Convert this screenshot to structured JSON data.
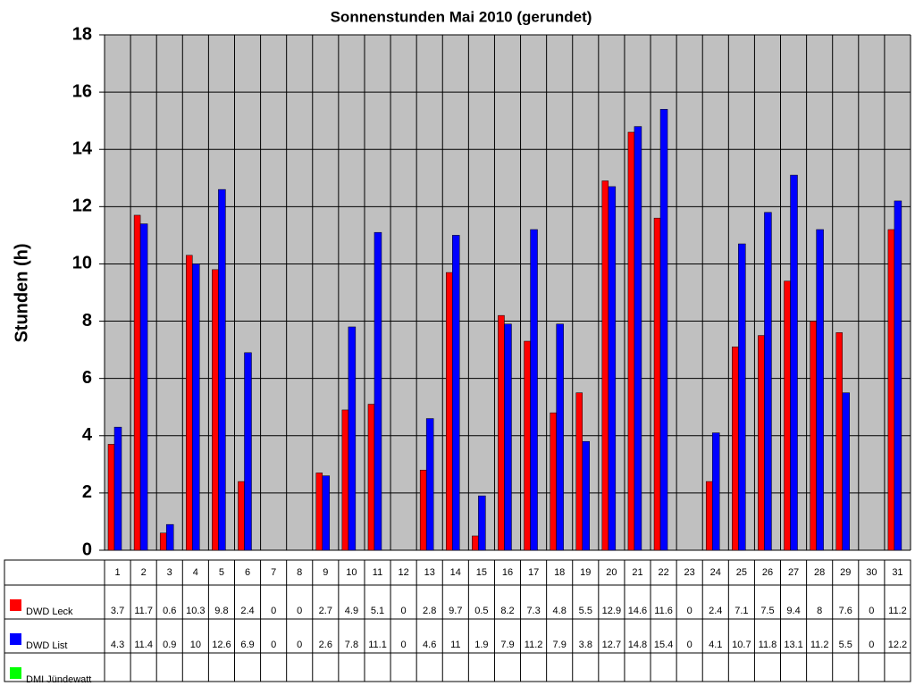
{
  "chart_data": {
    "type": "bar",
    "title": "Sonnenstunden Mai 2010 (gerundet)",
    "y_label": "Stunden (h)",
    "categories": [
      "1",
      "2",
      "3",
      "4",
      "5",
      "6",
      "7",
      "8",
      "9",
      "10",
      "11",
      "12",
      "13",
      "14",
      "15",
      "16",
      "17",
      "18",
      "19",
      "20",
      "21",
      "22",
      "23",
      "24",
      "25",
      "26",
      "27",
      "28",
      "29",
      "30",
      "31"
    ],
    "series": [
      {
        "name": "DWD Leck",
        "color": "#ff0000",
        "values": [
          3.7,
          11.7,
          0.6,
          10.3,
          9.8,
          2.4,
          0,
          0,
          2.7,
          4.9,
          5.1,
          0,
          2.8,
          9.7,
          0.5,
          8.2,
          7.3,
          4.8,
          5.5,
          12.9,
          14.6,
          11.6,
          0,
          2.4,
          7.1,
          7.5,
          9.4,
          8,
          7.6,
          0,
          11.2
        ]
      },
      {
        "name": "DWD List",
        "color": "#0000ff",
        "values": [
          4.3,
          11.4,
          0.9,
          10,
          12.6,
          6.9,
          0,
          0,
          2.6,
          7.8,
          11.1,
          0,
          4.6,
          11,
          1.9,
          7.9,
          11.2,
          7.9,
          3.8,
          12.7,
          14.8,
          15.4,
          0,
          4.1,
          10.7,
          11.8,
          13.1,
          11.2,
          5.5,
          0,
          12.2
        ]
      },
      {
        "name": "DMI Jündewatt",
        "color": "#00ff00",
        "values": [
          null,
          null,
          null,
          null,
          null,
          null,
          null,
          null,
          null,
          null,
          null,
          null,
          null,
          null,
          null,
          null,
          null,
          null,
          null,
          null,
          null,
          null,
          null,
          null,
          null,
          null,
          null,
          null,
          null,
          null,
          null
        ]
      }
    ],
    "ylim": [
      0,
      18
    ],
    "yticks": [
      0,
      2,
      4,
      6,
      8,
      10,
      12,
      14,
      16,
      18
    ],
    "grid": true
  }
}
